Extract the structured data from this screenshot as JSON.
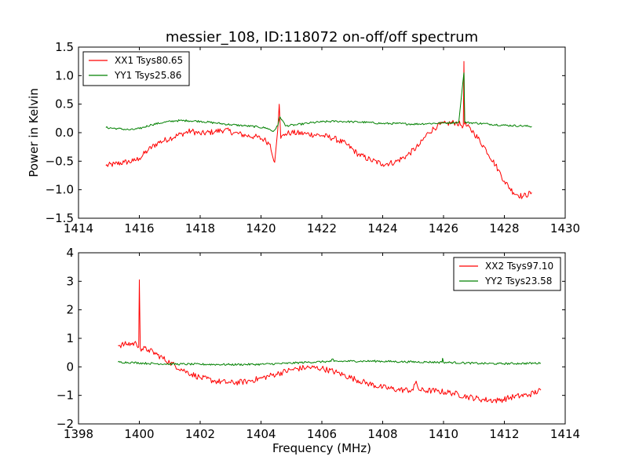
{
  "chart_data": [
    {
      "type": "line",
      "title": "messier_108, ID:118072 on-off/off spectrum",
      "xlabel": "",
      "ylabel": "Power in Kelvin",
      "xlim": [
        1414,
        1430
      ],
      "ylim": [
        -1.5,
        1.5
      ],
      "x_ticks": [
        "1414",
        "1416",
        "1418",
        "1420",
        "1422",
        "1424",
        "1426",
        "1428",
        "1430"
      ],
      "y_ticks": [
        "−1.5",
        "−1.0",
        "−0.5",
        "0.0",
        "0.5",
        "1.0",
        "1.5"
      ],
      "grid": false,
      "legend_position": "top-left",
      "series": [
        {
          "name": "XX1 Tsys80.65",
          "color": "#ff0000",
          "points": [
            [
              1414.9,
              -0.58
            ],
            [
              1415.2,
              -0.55
            ],
            [
              1415.5,
              -0.52
            ],
            [
              1415.8,
              -0.5
            ],
            [
              1416.0,
              -0.45
            ],
            [
              1416.3,
              -0.3
            ],
            [
              1416.6,
              -0.18
            ],
            [
              1417.0,
              -0.1
            ],
            [
              1417.4,
              -0.02
            ],
            [
              1417.7,
              0.03
            ],
            [
              1418.0,
              -0.02
            ],
            [
              1418.5,
              0.02
            ],
            [
              1418.8,
              0.05
            ],
            [
              1419.1,
              0.0
            ],
            [
              1419.5,
              -0.05
            ],
            [
              1419.8,
              -0.07
            ],
            [
              1420.1,
              -0.12
            ],
            [
              1420.3,
              -0.2
            ],
            [
              1420.45,
              -0.52
            ],
            [
              1420.55,
              0.05
            ],
            [
              1420.6,
              0.5
            ],
            [
              1420.65,
              -0.1
            ],
            [
              1420.8,
              -0.02
            ],
            [
              1421.0,
              0.0
            ],
            [
              1421.5,
              -0.02
            ],
            [
              1422.0,
              -0.05
            ],
            [
              1422.4,
              -0.1
            ],
            [
              1422.8,
              -0.2
            ],
            [
              1423.2,
              -0.38
            ],
            [
              1423.6,
              -0.48
            ],
            [
              1424.0,
              -0.55
            ],
            [
              1424.4,
              -0.52
            ],
            [
              1424.8,
              -0.4
            ],
            [
              1425.2,
              -0.22
            ],
            [
              1425.5,
              0.0
            ],
            [
              1425.8,
              0.12
            ],
            [
              1426.1,
              0.16
            ],
            [
              1426.4,
              0.18
            ],
            [
              1426.65,
              0.12
            ],
            [
              1426.67,
              1.25
            ],
            [
              1426.69,
              0.15
            ],
            [
              1427.0,
              0.0
            ],
            [
              1427.4,
              -0.3
            ],
            [
              1427.8,
              -0.65
            ],
            [
              1428.0,
              -0.85
            ],
            [
              1428.3,
              -1.05
            ],
            [
              1428.6,
              -1.12
            ],
            [
              1428.9,
              -1.05
            ]
          ]
        },
        {
          "name": "YY1 Tsys25.86",
          "color": "#008000",
          "points": [
            [
              1414.9,
              0.09
            ],
            [
              1415.3,
              0.07
            ],
            [
              1415.7,
              0.05
            ],
            [
              1416.0,
              0.07
            ],
            [
              1416.4,
              0.14
            ],
            [
              1416.8,
              0.18
            ],
            [
              1417.2,
              0.21
            ],
            [
              1417.6,
              0.21
            ],
            [
              1418.0,
              0.2
            ],
            [
              1418.5,
              0.17
            ],
            [
              1419.0,
              0.14
            ],
            [
              1419.5,
              0.12
            ],
            [
              1419.9,
              0.1
            ],
            [
              1420.2,
              0.08
            ],
            [
              1420.4,
              0.02
            ],
            [
              1420.55,
              0.12
            ],
            [
              1420.62,
              0.28
            ],
            [
              1420.7,
              0.22
            ],
            [
              1420.8,
              0.12
            ],
            [
              1421.2,
              0.14
            ],
            [
              1421.6,
              0.17
            ],
            [
              1422.0,
              0.19
            ],
            [
              1422.5,
              0.2
            ],
            [
              1423.0,
              0.19
            ],
            [
              1423.5,
              0.18
            ],
            [
              1424.0,
              0.16
            ],
            [
              1424.5,
              0.16
            ],
            [
              1425.0,
              0.15
            ],
            [
              1425.5,
              0.16
            ],
            [
              1426.0,
              0.17
            ],
            [
              1426.5,
              0.18
            ],
            [
              1426.67,
              1.05
            ],
            [
              1426.7,
              0.18
            ],
            [
              1427.0,
              0.17
            ],
            [
              1427.5,
              0.15
            ],
            [
              1428.0,
              0.13
            ],
            [
              1428.5,
              0.12
            ],
            [
              1428.9,
              0.11
            ]
          ]
        }
      ]
    },
    {
      "type": "line",
      "title": "",
      "xlabel": "Frequency (MHz)",
      "ylabel": "",
      "xlim": [
        1398,
        1414
      ],
      "ylim": [
        -2,
        4
      ],
      "x_ticks": [
        "1398",
        "1400",
        "1402",
        "1404",
        "1406",
        "1408",
        "1410",
        "1412",
        "1414"
      ],
      "y_ticks": [
        "−2",
        "−1",
        "0",
        "1",
        "2",
        "3",
        "4"
      ],
      "grid": false,
      "legend_position": "top-right",
      "series": [
        {
          "name": "XX2 Tsys97.10",
          "color": "#ff0000",
          "points": [
            [
              1399.3,
              0.75
            ],
            [
              1399.6,
              0.8
            ],
            [
              1399.9,
              0.82
            ],
            [
              1399.98,
              0.7
            ],
            [
              1400.0,
              3.05
            ],
            [
              1400.03,
              0.65
            ],
            [
              1400.3,
              0.6
            ],
            [
              1400.6,
              0.42
            ],
            [
              1401.0,
              0.15
            ],
            [
              1401.5,
              -0.15
            ],
            [
              1402.0,
              -0.38
            ],
            [
              1402.5,
              -0.5
            ],
            [
              1403.0,
              -0.56
            ],
            [
              1403.5,
              -0.52
            ],
            [
              1404.0,
              -0.4
            ],
            [
              1404.5,
              -0.25
            ],
            [
              1405.0,
              -0.1
            ],
            [
              1405.5,
              -0.02
            ],
            [
              1406.0,
              -0.05
            ],
            [
              1406.5,
              -0.2
            ],
            [
              1407.0,
              -0.4
            ],
            [
              1407.5,
              -0.58
            ],
            [
              1408.0,
              -0.72
            ],
            [
              1408.5,
              -0.8
            ],
            [
              1409.0,
              -0.82
            ],
            [
              1409.1,
              -0.5
            ],
            [
              1409.2,
              -0.82
            ],
            [
              1409.8,
              -0.85
            ],
            [
              1410.3,
              -0.92
            ],
            [
              1410.8,
              -1.05
            ],
            [
              1411.3,
              -1.15
            ],
            [
              1411.8,
              -1.18
            ],
            [
              1412.3,
              -1.05
            ],
            [
              1412.8,
              -0.98
            ],
            [
              1413.2,
              -0.82
            ]
          ]
        },
        {
          "name": "YY2 Tsys23.58",
          "color": "#008000",
          "points": [
            [
              1399.3,
              0.17
            ],
            [
              1399.8,
              0.15
            ],
            [
              1400.3,
              0.12
            ],
            [
              1401.0,
              0.1
            ],
            [
              1402.0,
              0.09
            ],
            [
              1403.0,
              0.08
            ],
            [
              1404.0,
              0.09
            ],
            [
              1404.8,
              0.12
            ],
            [
              1405.5,
              0.16
            ],
            [
              1406.3,
              0.19
            ],
            [
              1406.35,
              0.28
            ],
            [
              1406.4,
              0.19
            ],
            [
              1407.0,
              0.2
            ],
            [
              1407.8,
              0.2
            ],
            [
              1408.6,
              0.18
            ],
            [
              1409.4,
              0.17
            ],
            [
              1409.95,
              0.16
            ],
            [
              1409.97,
              0.3
            ],
            [
              1410.0,
              0.16
            ],
            [
              1410.6,
              0.14
            ],
            [
              1411.2,
              0.12
            ],
            [
              1411.8,
              0.11
            ],
            [
              1412.5,
              0.12
            ],
            [
              1413.2,
              0.13
            ]
          ]
        }
      ]
    }
  ]
}
